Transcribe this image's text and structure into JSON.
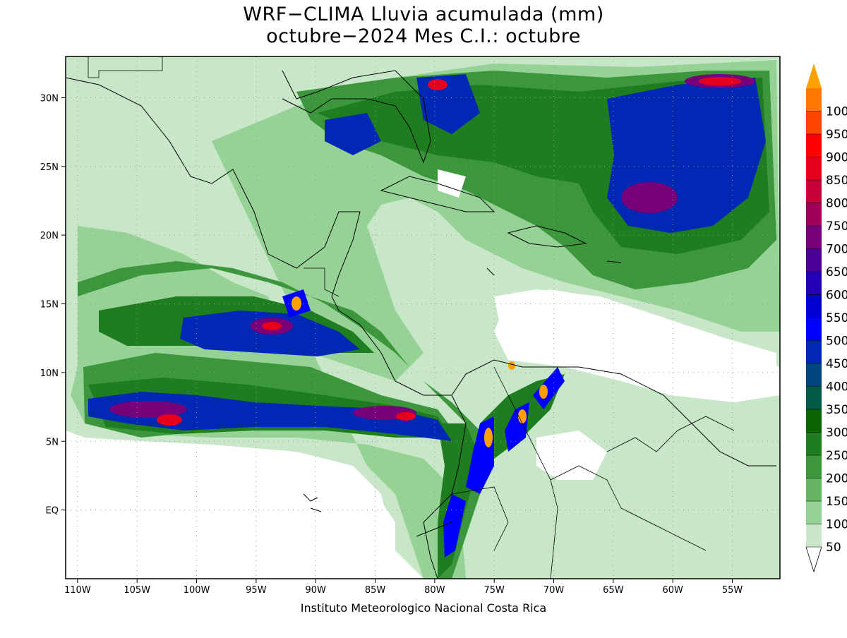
{
  "title": {
    "line1": "WRF−CLIMA Lluvia acumulada (mm)",
    "line2": "octubre−2024 Mes C.I.: octubre"
  },
  "credit": "Instituto Meteorologico Nacional Costa Rica",
  "map": {
    "lon_range": [
      -111,
      -51
    ],
    "lat_range": [
      -5,
      33
    ],
    "lon_ticks": [
      "110W",
      "105W",
      "100W",
      "95W",
      "90W",
      "85W",
      "80W",
      "75W",
      "70W",
      "65W",
      "60W",
      "55W"
    ],
    "lon_tick_values": [
      -110,
      -105,
      -100,
      -95,
      -90,
      -85,
      -80,
      -75,
      -70,
      -65,
      -60,
      -55
    ],
    "lat_ticks": [
      "30N",
      "25N",
      "20N",
      "15N",
      "10N",
      "5N",
      "EQ"
    ],
    "lat_tick_values": [
      30,
      25,
      20,
      15,
      10,
      5,
      0
    ],
    "grid": true
  },
  "colorbar": {
    "labels": [
      "50",
      "100",
      "150",
      "200",
      "250",
      "300",
      "350",
      "400",
      "450",
      "500",
      "550",
      "600",
      "650",
      "700",
      "750",
      "800",
      "850",
      "900",
      "950",
      "1000"
    ],
    "colors": [
      "#c8e6c8",
      "#96d296",
      "#64b464",
      "#3c963c",
      "#1e7d1e",
      "#0a6400",
      "#005a46",
      "#00467d",
      "#0028b4",
      "#0000ff",
      "#0000d2",
      "#2300b4",
      "#4b0096",
      "#780078",
      "#a0005a",
      "#c8003c",
      "#e6001e",
      "#ff0000",
      "#ff4600",
      "#ff7800",
      "#ffa000"
    ]
  },
  "legend": {
    "levels": [
      {
        "threshold": 50,
        "color": "#c8e6c8"
      },
      {
        "threshold": 100,
        "color": "#96d296"
      },
      {
        "threshold": 150,
        "color": "#64b464"
      },
      {
        "threshold": 200,
        "color": "#3c963c"
      },
      {
        "threshold": 250,
        "color": "#1e7d1e"
      },
      {
        "threshold": 300,
        "color": "#0a6400"
      },
      {
        "threshold": 350,
        "color": "#005a46"
      },
      {
        "threshold": 400,
        "color": "#00467d"
      },
      {
        "threshold": 450,
        "color": "#0028b4"
      },
      {
        "threshold": 500,
        "color": "#0000ff"
      }
    ]
  }
}
